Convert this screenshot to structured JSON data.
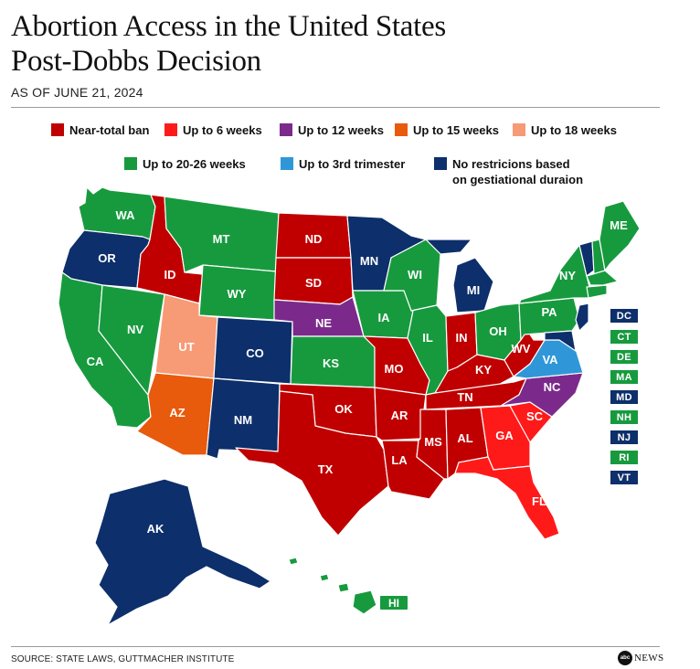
{
  "title_line1": "Abortion Access in the United States",
  "title_line2": "Post-Dobbs Decision",
  "as_of": "AS OF JUNE 21, 2024",
  "colors": {
    "near_total_ban": "#c00000",
    "up_to_6_weeks": "#ff1a1a",
    "up_to_12_weeks": "#7b2a8c",
    "up_to_15_weeks": "#e85a0c",
    "up_to_18_weeks": "#f79a76",
    "up_to_20_26_weeks": "#179a3e",
    "up_to_3rd_trimester": "#2f97d8",
    "no_restrictions": "#0d2f6b",
    "label_text": "#ffffff",
    "border": "#ffffff"
  },
  "legend": [
    {
      "key": "near_total_ban",
      "label": "Near-total ban"
    },
    {
      "key": "up_to_6_weeks",
      "label": "Up to 6 weeks"
    },
    {
      "key": "up_to_12_weeks",
      "label": "Up to 12 weeks"
    },
    {
      "key": "up_to_15_weeks",
      "label": "Up to 15 weeks"
    },
    {
      "key": "up_to_18_weeks",
      "label": "Up to 18 weeks"
    },
    {
      "key": "up_to_20_26_weeks",
      "label": "Up to 20-26 weeks"
    },
    {
      "key": "up_to_3rd_trimester",
      "label": "Up to 3rd trimester"
    },
    {
      "key": "no_restrictions",
      "label": "No restricions based\non gestiational duraion"
    }
  ],
  "states": [
    {
      "abbr": "WA",
      "category": "up_to_20_26_weeks"
    },
    {
      "abbr": "OR",
      "category": "no_restrictions"
    },
    {
      "abbr": "CA",
      "category": "up_to_20_26_weeks"
    },
    {
      "abbr": "NV",
      "category": "up_to_20_26_weeks"
    },
    {
      "abbr": "ID",
      "category": "near_total_ban"
    },
    {
      "abbr": "MT",
      "category": "up_to_20_26_weeks"
    },
    {
      "abbr": "WY",
      "category": "up_to_20_26_weeks"
    },
    {
      "abbr": "UT",
      "category": "up_to_18_weeks"
    },
    {
      "abbr": "AZ",
      "category": "up_to_15_weeks"
    },
    {
      "abbr": "CO",
      "category": "no_restrictions"
    },
    {
      "abbr": "NM",
      "category": "no_restrictions"
    },
    {
      "abbr": "ND",
      "category": "near_total_ban"
    },
    {
      "abbr": "SD",
      "category": "near_total_ban"
    },
    {
      "abbr": "NE",
      "category": "up_to_12_weeks"
    },
    {
      "abbr": "KS",
      "category": "up_to_20_26_weeks"
    },
    {
      "abbr": "OK",
      "category": "near_total_ban"
    },
    {
      "abbr": "TX",
      "category": "near_total_ban"
    },
    {
      "abbr": "MN",
      "category": "no_restrictions"
    },
    {
      "abbr": "IA",
      "category": "up_to_20_26_weeks"
    },
    {
      "abbr": "MO",
      "category": "near_total_ban"
    },
    {
      "abbr": "AR",
      "category": "near_total_ban"
    },
    {
      "abbr": "LA",
      "category": "near_total_ban"
    },
    {
      "abbr": "WI",
      "category": "up_to_20_26_weeks"
    },
    {
      "abbr": "IL",
      "category": "up_to_20_26_weeks"
    },
    {
      "abbr": "MI",
      "category": "no_restrictions"
    },
    {
      "abbr": "IN",
      "category": "near_total_ban"
    },
    {
      "abbr": "OH",
      "category": "up_to_20_26_weeks"
    },
    {
      "abbr": "KY",
      "category": "near_total_ban"
    },
    {
      "abbr": "TN",
      "category": "near_total_ban"
    },
    {
      "abbr": "MS",
      "category": "near_total_ban"
    },
    {
      "abbr": "AL",
      "category": "near_total_ban"
    },
    {
      "abbr": "GA",
      "category": "up_to_6_weeks"
    },
    {
      "abbr": "FL",
      "category": "up_to_6_weeks"
    },
    {
      "abbr": "SC",
      "category": "up_to_6_weeks"
    },
    {
      "abbr": "NC",
      "category": "up_to_12_weeks"
    },
    {
      "abbr": "VA",
      "category": "up_to_3rd_trimester"
    },
    {
      "abbr": "WV",
      "category": "near_total_ban"
    },
    {
      "abbr": "PA",
      "category": "up_to_20_26_weeks"
    },
    {
      "abbr": "NY",
      "category": "up_to_20_26_weeks"
    },
    {
      "abbr": "ME",
      "category": "up_to_20_26_weeks"
    },
    {
      "abbr": "AK",
      "category": "no_restrictions"
    },
    {
      "abbr": "HI",
      "category": "up_to_20_26_weeks"
    }
  ],
  "small_states": [
    {
      "abbr": "DC",
      "category": "no_restrictions"
    },
    {
      "abbr": "CT",
      "category": "up_to_20_26_weeks"
    },
    {
      "abbr": "DE",
      "category": "up_to_20_26_weeks"
    },
    {
      "abbr": "MA",
      "category": "up_to_20_26_weeks"
    },
    {
      "abbr": "MD",
      "category": "no_restrictions"
    },
    {
      "abbr": "NH",
      "category": "up_to_20_26_weeks"
    },
    {
      "abbr": "NJ",
      "category": "no_restrictions"
    },
    {
      "abbr": "RI",
      "category": "up_to_20_26_weeks"
    },
    {
      "abbr": "VT",
      "category": "no_restrictions"
    }
  ],
  "source": "SOURCE: STATE LAWS, GUTTMACHER INSTITUTE",
  "logo_mark": "abc",
  "logo_text": "NEWS"
}
